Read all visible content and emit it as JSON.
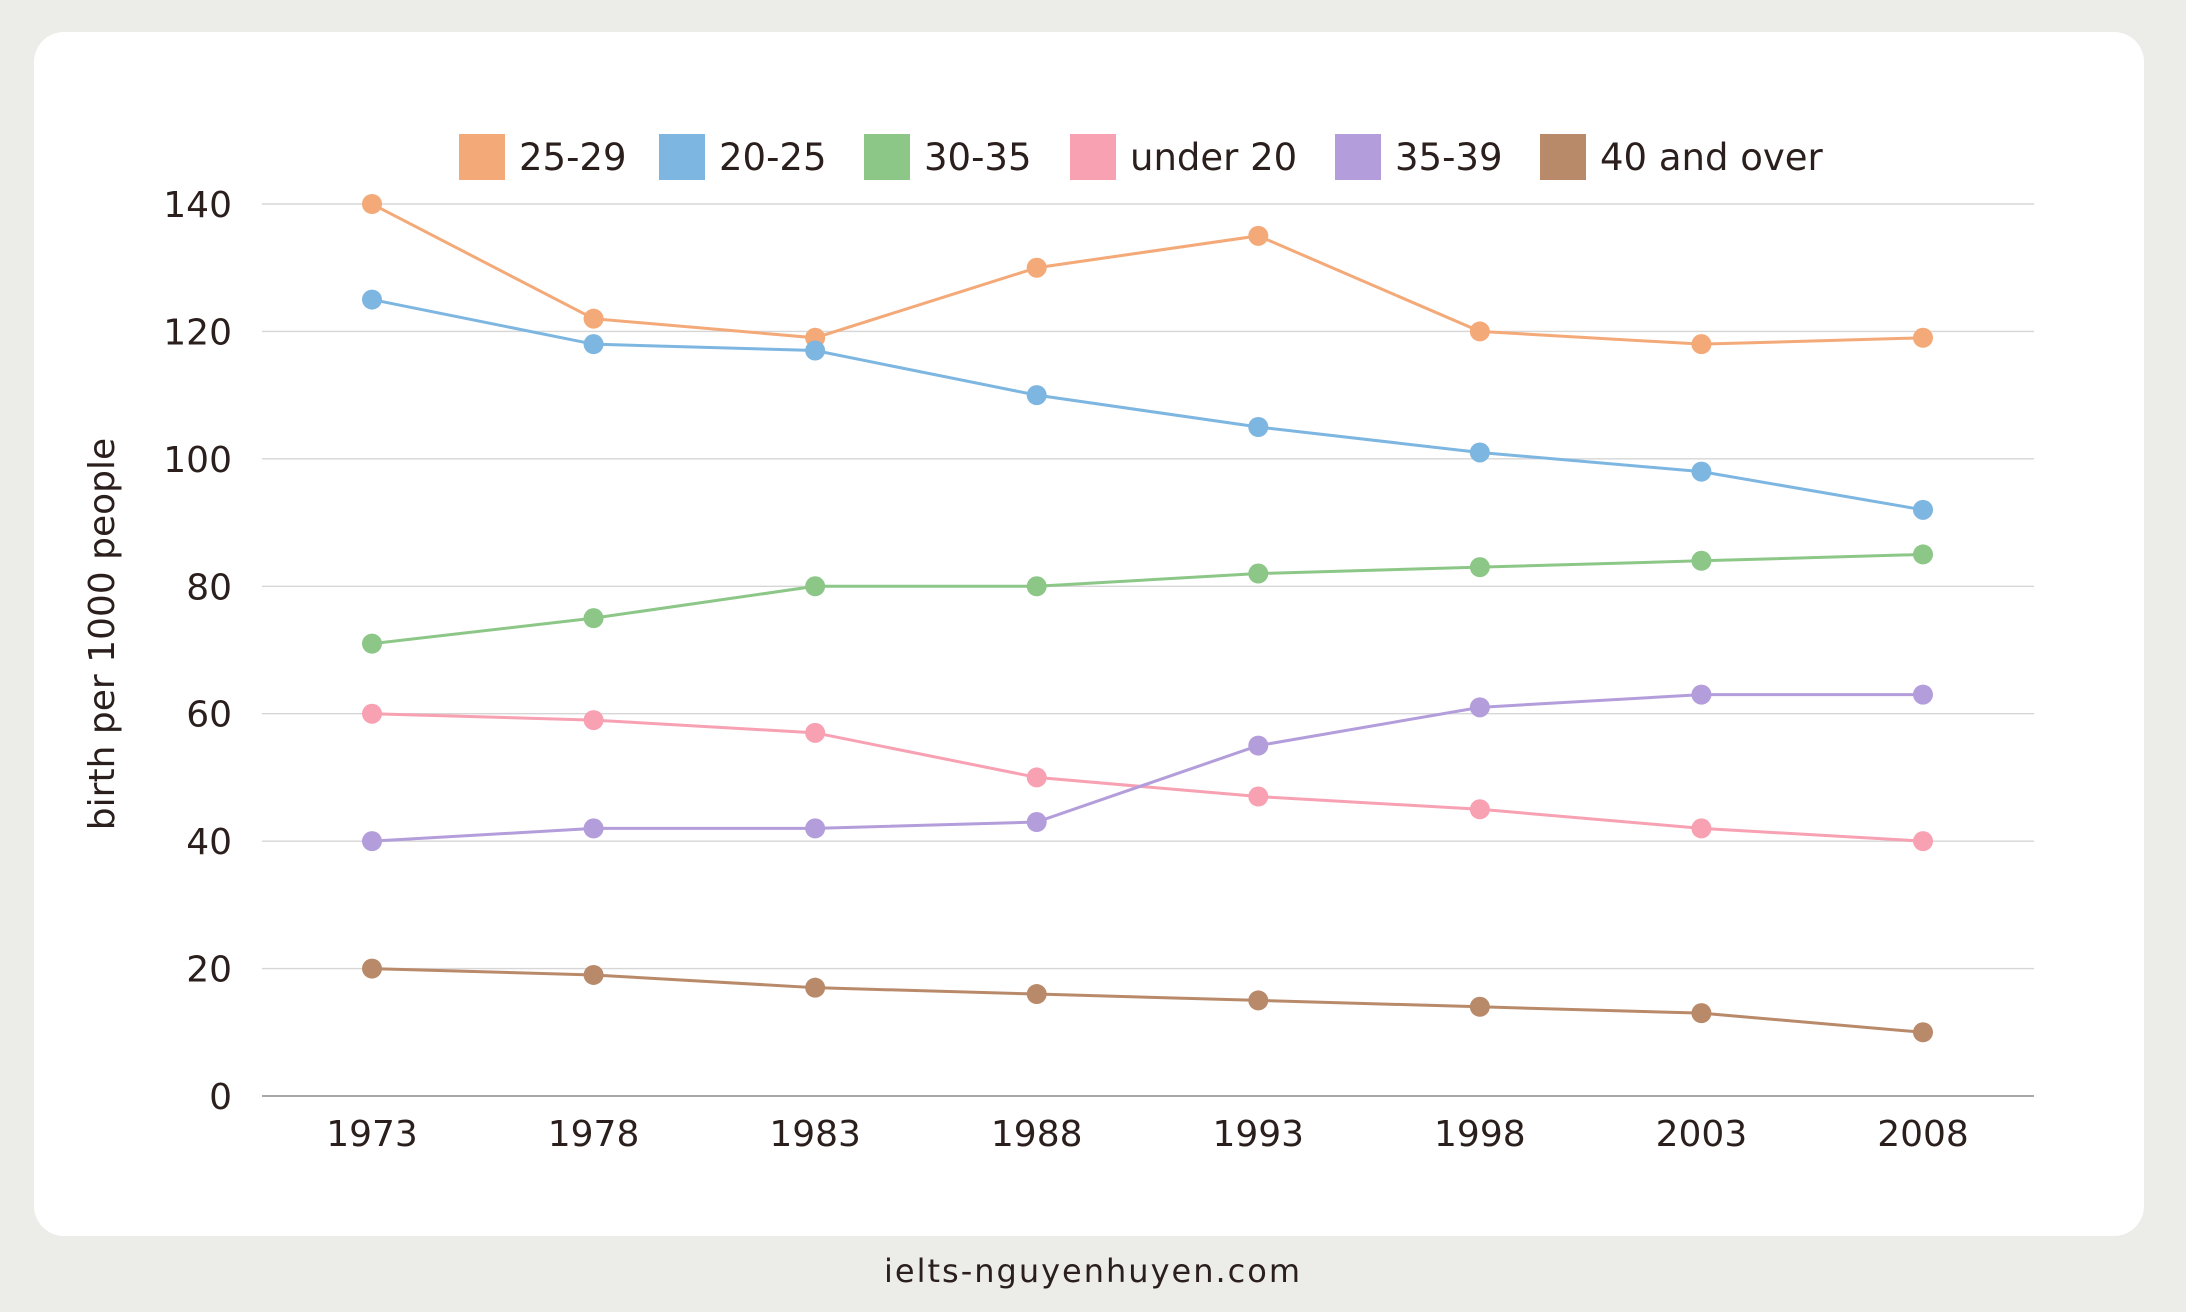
{
  "footer": {
    "website": "ielts-nguyenhuyen.com"
  },
  "chart_data": {
    "type": "line",
    "title": "",
    "xlabel": "",
    "ylabel": "birth per 1000 people",
    "x": [
      "1973",
      "1978",
      "1983",
      "1988",
      "1993",
      "1998",
      "2003",
      "2008"
    ],
    "ylim": [
      0,
      140
    ],
    "yticks": [
      0,
      20,
      40,
      60,
      80,
      100,
      120,
      140
    ],
    "grid": true,
    "legend_position": "top",
    "series": [
      {
        "name": "25-29",
        "color": "#f3a978",
        "values": [
          140,
          122,
          119,
          130,
          135,
          120,
          118,
          119
        ]
      },
      {
        "name": "20-25",
        "color": "#7db6e0",
        "values": [
          125,
          118,
          117,
          110,
          105,
          101,
          98,
          92
        ]
      },
      {
        "name": "30-35",
        "color": "#8cc788",
        "values": [
          71,
          75,
          80,
          80,
          82,
          83,
          84,
          85
        ]
      },
      {
        "name": "under 20",
        "color": "#f7a1b3",
        "values": [
          60,
          59,
          57,
          50,
          47,
          45,
          42,
          40
        ]
      },
      {
        "name": "35-39",
        "color": "#b39ddb",
        "values": [
          40,
          42,
          42,
          43,
          55,
          61,
          63,
          63
        ]
      },
      {
        "name": "40 and over",
        "color": "#b98a6a",
        "values": [
          20,
          19,
          17,
          16,
          15,
          14,
          13,
          10
        ]
      }
    ]
  }
}
